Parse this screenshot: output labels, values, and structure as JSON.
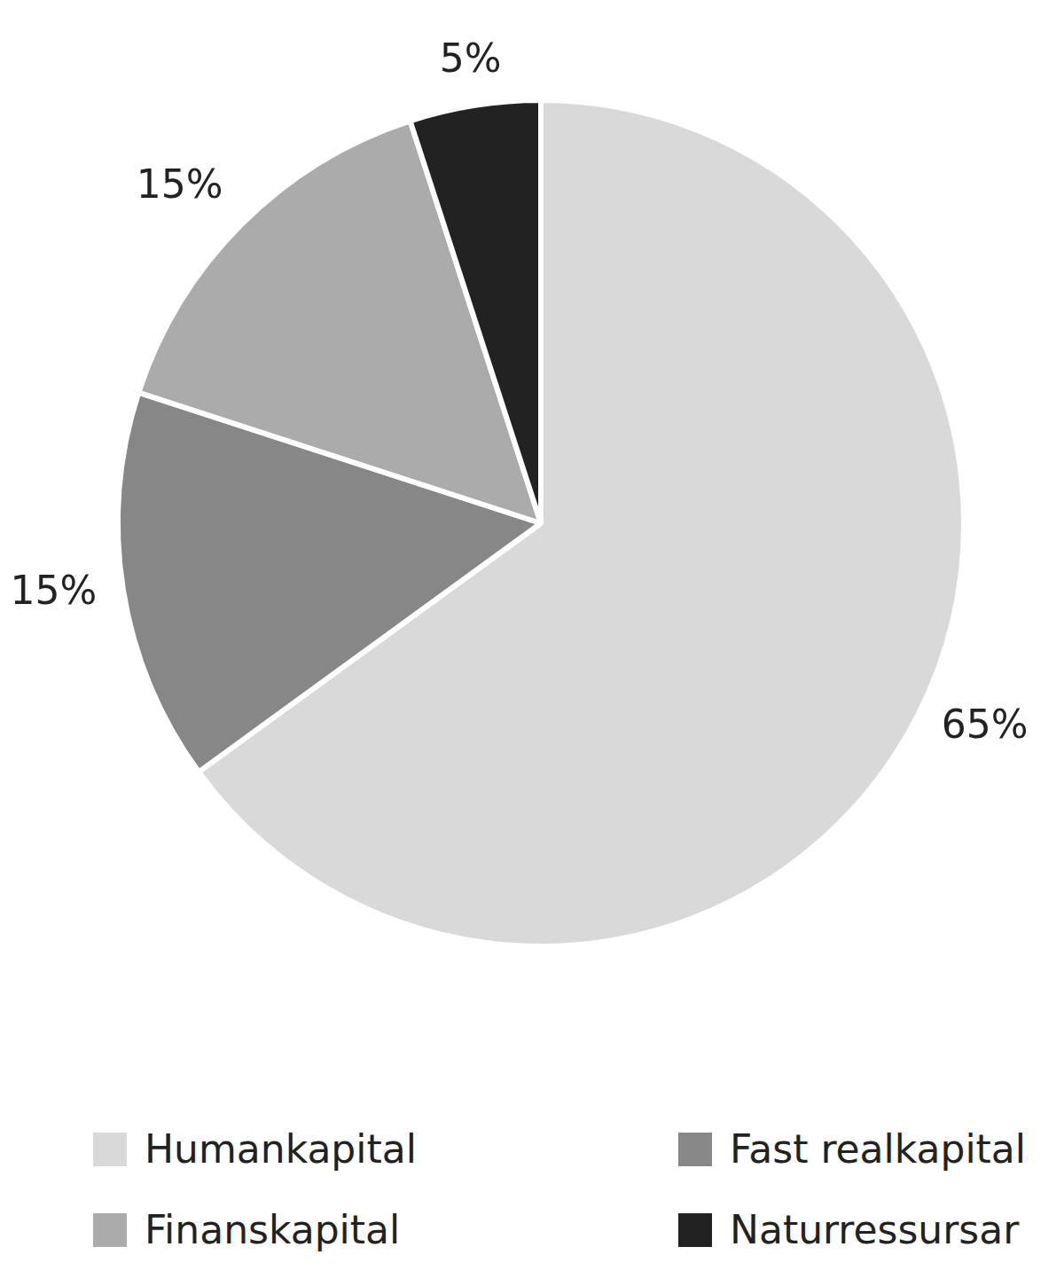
{
  "chart_data": {
    "type": "pie",
    "categories": [
      "Humankapital",
      "Fast realkapital",
      "Finanskapital",
      "Naturressursar"
    ],
    "values": [
      65,
      15,
      15,
      5
    ],
    "value_labels": [
      "65%",
      "15%",
      "15%",
      "5%"
    ],
    "colors": [
      "#d9d9d9",
      "#878787",
      "#ababab",
      "#222222"
    ],
    "data_labels": true,
    "legend": "bottom"
  }
}
